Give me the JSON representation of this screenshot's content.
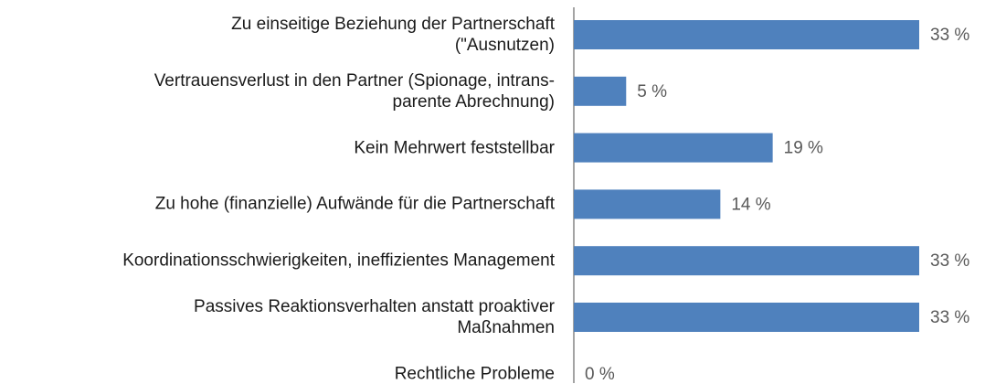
{
  "chart_data": {
    "type": "bar",
    "orientation": "horizontal",
    "categories": [
      "Zu einseitige Beziehung der Partnerschaft\n(\"Ausnutzen)",
      "Vertrauensverlust in den Partner (Spionage, intrans-\nparente Abrechnung)",
      "Kein Mehrwert feststellbar",
      "Zu hohe (finanzielle) Aufwände für die Partnerschaft",
      "Koordinationsschwierigkeiten, ineffizientes Management",
      "Passives Reaktionsverhalten anstatt proaktiver\nMaßnahmen",
      "Rechtliche Probleme"
    ],
    "values": [
      33,
      5,
      19,
      14,
      33,
      33,
      0
    ],
    "value_labels": [
      "33 %",
      "5 %",
      "19 %",
      "14 %",
      "33 %",
      "33 %",
      "0 %"
    ],
    "color": "#4f81bd",
    "xlim": [
      0,
      33
    ]
  }
}
